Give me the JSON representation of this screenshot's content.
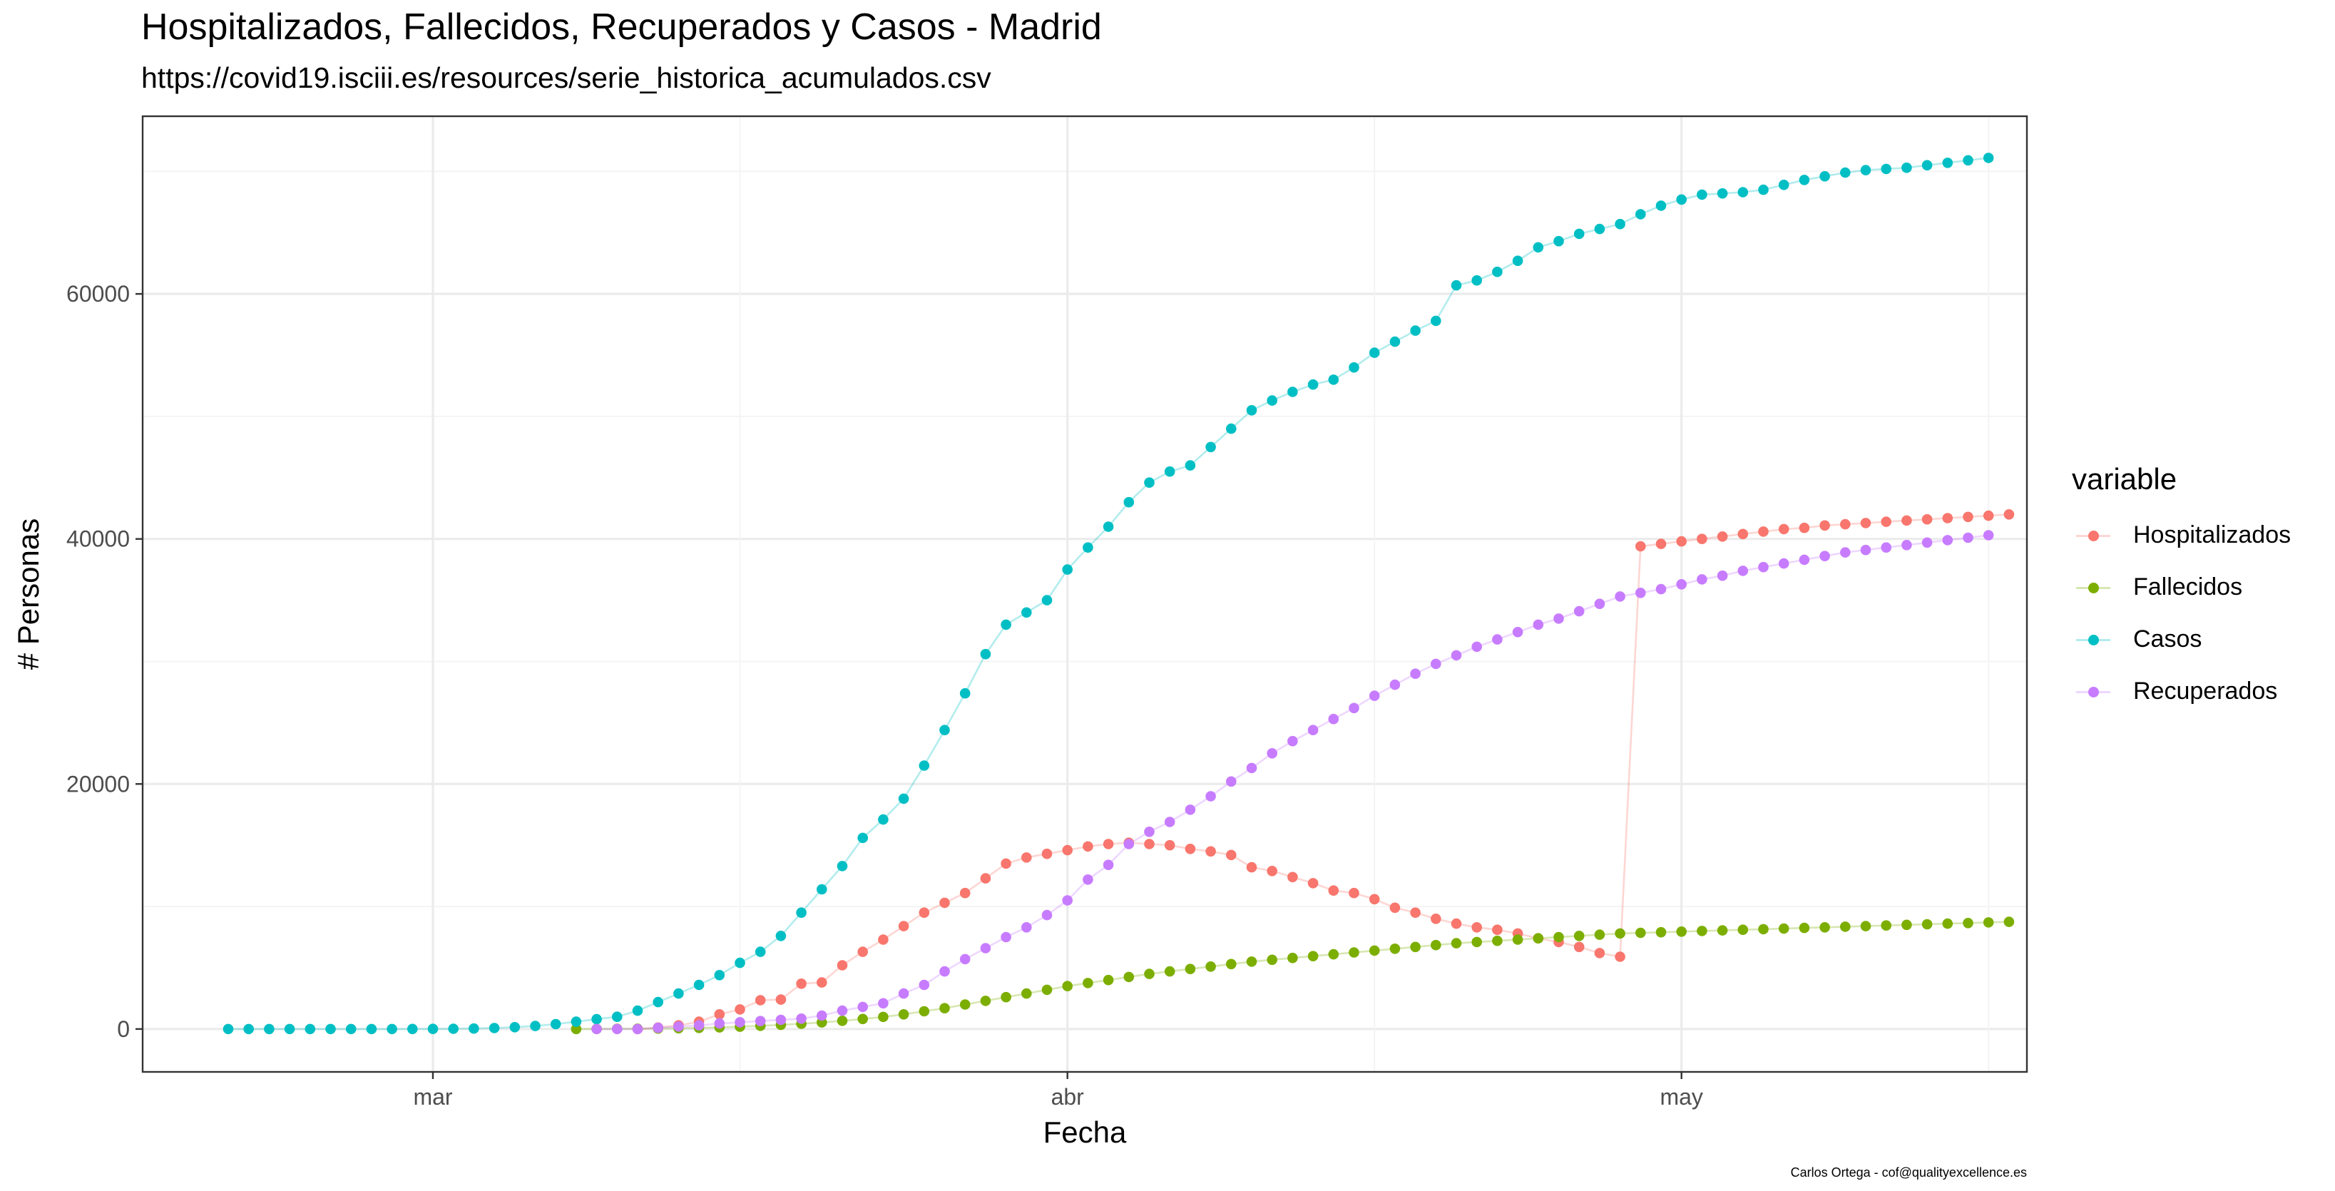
{
  "chart_data": {
    "type": "line",
    "title": "Hospitalizados, Fallecidos, Recuperados y Casos - Madrid",
    "subtitle": "https://covid19.isciii.es/resources/serie_historica_acumulados.csv",
    "xlabel": "Fecha",
    "ylabel": "# Personas",
    "caption": "Carlos Ortega - cof@qualityexcellence.es",
    "x_tick_labels": [
      "mar",
      "abr",
      "may"
    ],
    "y_tick_labels": [
      "0",
      "20000",
      "40000",
      "60000"
    ],
    "ylim": [
      -3500,
      74500
    ],
    "legend_title": "variable",
    "legend_position": "right",
    "grid": true,
    "series": [
      {
        "name": "Hospitalizados",
        "color": "#F8766D",
        "start_date": "2020-03-11",
        "values": [
          0,
          120,
          300,
          600,
          1200,
          1600,
          2350,
          2400,
          3700,
          3800,
          5200,
          6300,
          7300,
          8400,
          9500,
          10300,
          11100,
          12300,
          13500,
          14000,
          14300,
          14600,
          14900,
          15100,
          15200,
          15100,
          15000,
          14700,
          14500,
          14200,
          13200,
          12900,
          12400,
          11900,
          11300,
          11100,
          10600,
          9900,
          9500,
          9000,
          8600,
          8300,
          8100,
          7800,
          7400,
          7100,
          6700,
          6200,
          5900,
          39400,
          39600,
          39800,
          40000,
          40200,
          40400,
          40600,
          40800,
          40900,
          41100,
          41200,
          41300,
          41400,
          41500,
          41600,
          41700,
          41800,
          41900,
          42000
        ]
      },
      {
        "name": "Fallecidos",
        "color": "#7CAE00",
        "start_date": "2020-03-08",
        "values": [
          0,
          10,
          20,
          30,
          40,
          60,
          90,
          130,
          190,
          260,
          340,
          430,
          540,
          670,
          820,
          990,
          1200,
          1450,
          1700,
          2000,
          2300,
          2600,
          2900,
          3200,
          3500,
          3750,
          4000,
          4250,
          4500,
          4700,
          4900,
          5100,
          5300,
          5500,
          5650,
          5800,
          5950,
          6100,
          6250,
          6400,
          6550,
          6700,
          6850,
          7000,
          7100,
          7200,
          7300,
          7400,
          7500,
          7600,
          7700,
          7800,
          7850,
          7900,
          7950,
          8000,
          8050,
          8100,
          8150,
          8200,
          8250,
          8300,
          8350,
          8400,
          8450,
          8500,
          8550,
          8600,
          8650,
          8700,
          8750
        ]
      },
      {
        "name": "Casos",
        "color": "#00BFC4",
        "start_date": "2020-02-20",
        "values": [
          0,
          0,
          0,
          0,
          0,
          0,
          0,
          0,
          0,
          5,
          10,
          20,
          40,
          80,
          150,
          250,
          400,
          600,
          800,
          1000,
          1500,
          2200,
          2900,
          3600,
          4400,
          5400,
          6300,
          7600,
          9500,
          11400,
          13300,
          15600,
          17100,
          18800,
          21500,
          24400,
          27400,
          30600,
          33000,
          34000,
          35000,
          37500,
          39300,
          41000,
          43000,
          44600,
          45500,
          46000,
          47500,
          49000,
          50500,
          51300,
          52000,
          52600,
          53000,
          54000,
          55200,
          56100,
          57000,
          57800,
          60700,
          61100,
          61800,
          62700,
          63800,
          64300,
          64900,
          65300,
          65700,
          66500,
          67200,
          67700,
          68100,
          68200,
          68300,
          68500,
          68900,
          69300,
          69600,
          69900,
          70100,
          70200,
          70300,
          70500,
          70700,
          70900,
          71100
        ]
      },
      {
        "name": "Recuperados",
        "color": "#C77CFF",
        "start_date": "2020-03-09",
        "values": [
          0,
          0,
          0,
          100,
          200,
          300,
          450,
          550,
          650,
          750,
          850,
          1100,
          1500,
          1800,
          2100,
          2900,
          3600,
          4700,
          5700,
          6600,
          7500,
          8300,
          9300,
          10500,
          12200,
          13400,
          15100,
          16100,
          16900,
          17900,
          19000,
          20200,
          21300,
          22500,
          23500,
          24400,
          25300,
          26200,
          27200,
          28100,
          29000,
          29800,
          30500,
          31200,
          31800,
          32400,
          33000,
          33500,
          34100,
          34700,
          35300,
          35600,
          35900,
          36300,
          36700,
          37000,
          37400,
          37700,
          38000,
          38300,
          38600,
          38900,
          39100,
          39300,
          39500,
          39700,
          39900,
          40100,
          40300
        ]
      }
    ]
  }
}
